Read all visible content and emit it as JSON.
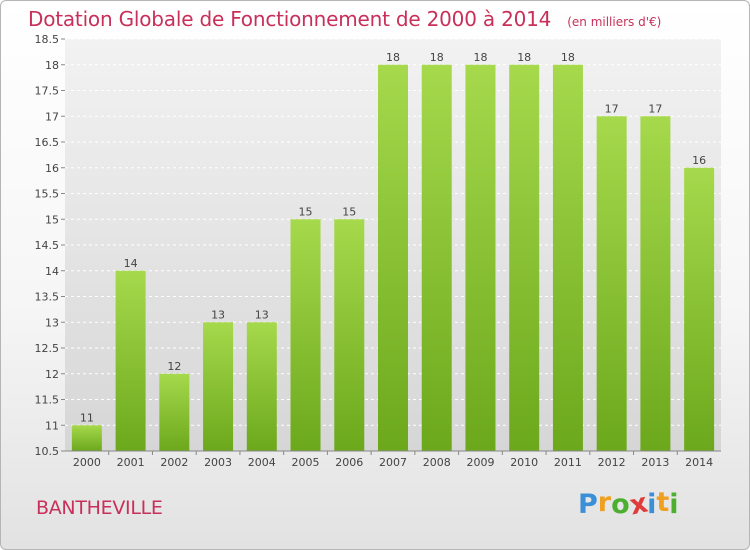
{
  "chart_data": {
    "type": "bar",
    "title": "Dotation Globale de Fonctionnement de 2000 à 2014",
    "unit_note": "(en milliers d'€)",
    "categories": [
      "2000",
      "2001",
      "2002",
      "2003",
      "2004",
      "2005",
      "2006",
      "2007",
      "2008",
      "2009",
      "2010",
      "2011",
      "2012",
      "2013",
      "2014"
    ],
    "values": [
      11,
      14,
      12,
      13,
      13,
      15,
      15,
      18,
      18,
      18,
      18,
      18,
      17,
      17,
      16
    ],
    "data_labels": [
      "11",
      "14",
      "12",
      "13",
      "13",
      "15",
      "15",
      "18",
      "18",
      "18",
      "18",
      "18",
      "17",
      "17",
      "16"
    ],
    "ylim": [
      10.5,
      18.5
    ],
    "yticks": [
      10.5,
      11,
      11.5,
      12,
      12.5,
      13,
      13.5,
      14,
      14.5,
      15,
      15.5,
      16,
      16.5,
      17,
      17.5,
      18,
      18.5
    ],
    "ytick_labels": [
      "10.5",
      "11",
      "11.5",
      "12",
      "12.5",
      "13",
      "13.5",
      "14",
      "14.5",
      "15",
      "15.5",
      "16",
      "16.5",
      "17",
      "17.5",
      "18",
      "18.5"
    ],
    "grid": true,
    "xlabel": "",
    "ylabel": "",
    "colors": {
      "bar_top": "#a6d94c",
      "bar_bottom": "#6ca81c",
      "grid": "#ffffff",
      "plot_bg_top": "#f2f2f2",
      "plot_bg_bottom": "#d6d6d6",
      "title": "#c8305a"
    }
  },
  "footer": {
    "commune": "BANTHEVILLE"
  },
  "brand": {
    "letters": [
      "P",
      "r",
      "o",
      "x",
      "i",
      "t",
      "i"
    ],
    "colors": [
      "#3b8fd6",
      "#f0a020",
      "#4caf30",
      "#e03c3c",
      "#3b8fd6",
      "#f0a020",
      "#4caf30"
    ]
  }
}
